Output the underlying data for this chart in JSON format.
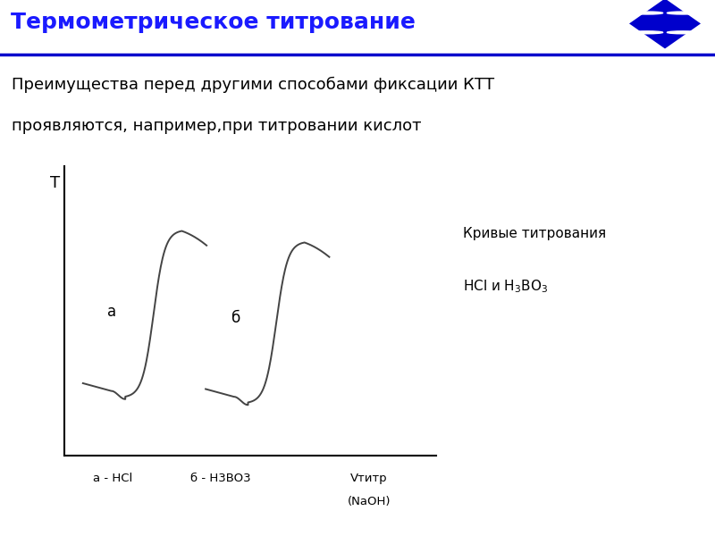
{
  "title": "Термометрическое титрование",
  "title_color": "#1a1aff",
  "title_fontsize": 18,
  "subtitle_line1": "Преимущества перед другими способами фиксации КТТ",
  "subtitle_line2": "проявляются, например,при титровании кислот",
  "subtitle_fontsize": 13,
  "bg_color": "#ffffff",
  "header_line_color": "#0000cc",
  "curve_color": "#444444",
  "curve_linewidth": 1.4,
  "ylabel": "T",
  "xlabel_main": "Vтитр",
  "xlabel_sub": "(NaOH)",
  "xlabel_a": "а - HCl",
  "xlabel_b": "б - H3BO3",
  "label_a": "а",
  "label_b": "б",
  "legend_line1": "Кривые титрования",
  "diamond_color": "#0000cc",
  "axis_color": "#000000"
}
